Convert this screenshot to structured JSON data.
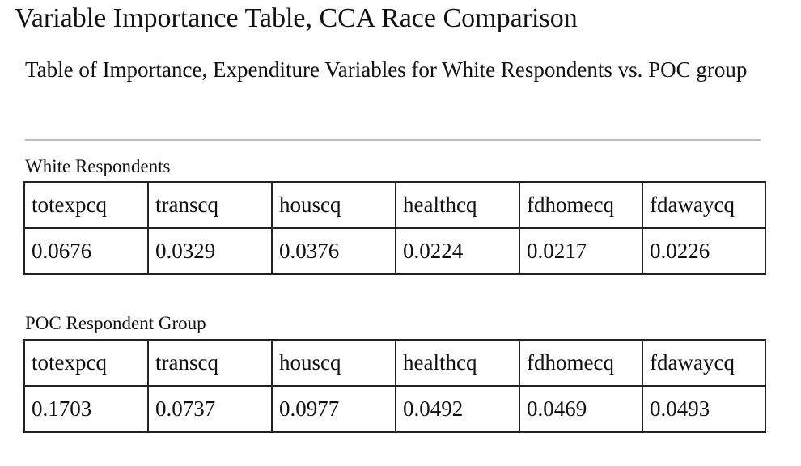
{
  "title": "Variable Importance Table, CCA Race Comparison",
  "subtitle": "Table of Importance, Expenditure Variables for White Respondents vs. POC group",
  "tables": [
    {
      "caption": "White Respondents",
      "headers": [
        "totexpcq",
        "transcq",
        "houscq",
        "healthcq",
        "fdhomecq",
        "fdawaycq"
      ],
      "values": [
        "0.0676",
        "0.0329",
        "0.0376",
        "0.0224",
        "0.0217",
        "0.0226"
      ]
    },
    {
      "caption": "POC Respondent Group",
      "headers": [
        "totexpcq",
        "transcq",
        "houscq",
        "healthcq",
        "fdhomecq",
        "fdawaycq"
      ],
      "values": [
        "0.1703",
        "0.0737",
        "0.0977",
        "0.0492",
        "0.0469",
        "0.0493"
      ]
    }
  ]
}
